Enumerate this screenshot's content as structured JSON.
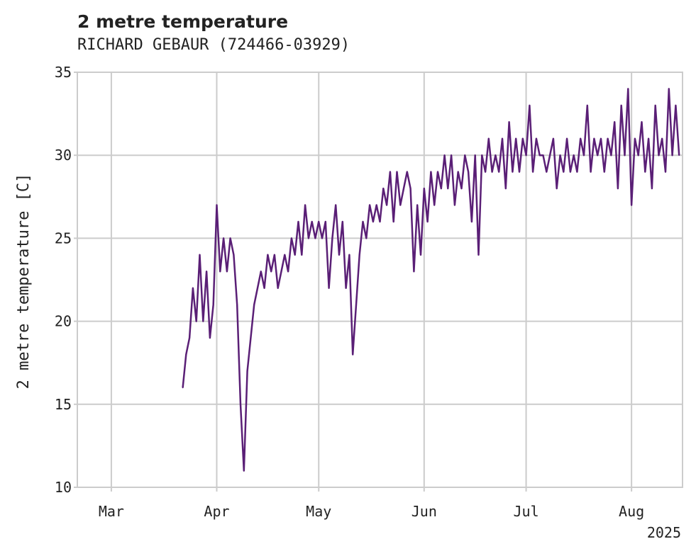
{
  "chart_data": {
    "type": "line",
    "title": "2 metre temperature",
    "subtitle": "RICHARD GEBAUR (724466-03929)",
    "ylabel": "2 metre temperature [C]",
    "xlabel": "",
    "x_tick_labels": [
      "Mar",
      "Apr",
      "May",
      "Jun",
      "Jul",
      "Aug"
    ],
    "x_tick_dates": [
      "2025-03-01",
      "2025-04-01",
      "2025-05-01",
      "2025-06-01",
      "2025-07-01",
      "2025-08-01"
    ],
    "x_offset_label": "2025",
    "y_ticks": [
      10,
      15,
      20,
      25,
      30,
      35
    ],
    "xlim": [
      "2025-02-19",
      "2025-08-16"
    ],
    "ylim": [
      10,
      35
    ],
    "grid": true,
    "line_color": "#5a1f76",
    "series": [
      {
        "points": [
          [
            "2025-03-22",
            16
          ],
          [
            "2025-03-23",
            18
          ],
          [
            "2025-03-24",
            19
          ],
          [
            "2025-03-25",
            22
          ],
          [
            "2025-03-26",
            20
          ],
          [
            "2025-03-27",
            24
          ],
          [
            "2025-03-28",
            20
          ],
          [
            "2025-03-29",
            23
          ],
          [
            "2025-03-30",
            19
          ],
          [
            "2025-03-31",
            21
          ],
          [
            "2025-04-01",
            27
          ],
          [
            "2025-04-02",
            23
          ],
          [
            "2025-04-03",
            25
          ],
          [
            "2025-04-04",
            23
          ],
          [
            "2025-04-05",
            25
          ],
          [
            "2025-04-06",
            24
          ],
          [
            "2025-04-07",
            21
          ],
          [
            "2025-04-08",
            15
          ],
          [
            "2025-04-09",
            11
          ],
          [
            "2025-04-10",
            17
          ],
          [
            "2025-04-11",
            19
          ],
          [
            "2025-04-12",
            21
          ],
          [
            "2025-04-13",
            22
          ],
          [
            "2025-04-14",
            23
          ],
          [
            "2025-04-15",
            22
          ],
          [
            "2025-04-16",
            24
          ],
          [
            "2025-04-17",
            23
          ],
          [
            "2025-04-18",
            24
          ],
          [
            "2025-04-19",
            22
          ],
          [
            "2025-04-20",
            23
          ],
          [
            "2025-04-21",
            24
          ],
          [
            "2025-04-22",
            23
          ],
          [
            "2025-04-23",
            25
          ],
          [
            "2025-04-24",
            24
          ],
          [
            "2025-04-25",
            26
          ],
          [
            "2025-04-26",
            24
          ],
          [
            "2025-04-27",
            27
          ],
          [
            "2025-04-28",
            25
          ],
          [
            "2025-04-29",
            26
          ],
          [
            "2025-04-30",
            25
          ],
          [
            "2025-05-01",
            26
          ],
          [
            "2025-05-02",
            25
          ],
          [
            "2025-05-03",
            26
          ],
          [
            "2025-05-04",
            22
          ],
          [
            "2025-05-05",
            25
          ],
          [
            "2025-05-06",
            27
          ],
          [
            "2025-05-07",
            24
          ],
          [
            "2025-05-08",
            26
          ],
          [
            "2025-05-09",
            22
          ],
          [
            "2025-05-10",
            24
          ],
          [
            "2025-05-11",
            18
          ],
          [
            "2025-05-12",
            21
          ],
          [
            "2025-05-13",
            24
          ],
          [
            "2025-05-14",
            26
          ],
          [
            "2025-05-15",
            25
          ],
          [
            "2025-05-16",
            27
          ],
          [
            "2025-05-17",
            26
          ],
          [
            "2025-05-18",
            27
          ],
          [
            "2025-05-19",
            26
          ],
          [
            "2025-05-20",
            28
          ],
          [
            "2025-05-21",
            27
          ],
          [
            "2025-05-22",
            29
          ],
          [
            "2025-05-23",
            26
          ],
          [
            "2025-05-24",
            29
          ],
          [
            "2025-05-25",
            27
          ],
          [
            "2025-05-26",
            28
          ],
          [
            "2025-05-27",
            29
          ],
          [
            "2025-05-28",
            28
          ],
          [
            "2025-05-29",
            23
          ],
          [
            "2025-05-30",
            27
          ],
          [
            "2025-05-31",
            24
          ],
          [
            "2025-06-01",
            28
          ],
          [
            "2025-06-02",
            26
          ],
          [
            "2025-06-03",
            29
          ],
          [
            "2025-06-04",
            27
          ],
          [
            "2025-06-05",
            29
          ],
          [
            "2025-06-06",
            28
          ],
          [
            "2025-06-07",
            30
          ],
          [
            "2025-06-08",
            28
          ],
          [
            "2025-06-09",
            30
          ],
          [
            "2025-06-10",
            27
          ],
          [
            "2025-06-11",
            29
          ],
          [
            "2025-06-12",
            28
          ],
          [
            "2025-06-13",
            30
          ],
          [
            "2025-06-14",
            29
          ],
          [
            "2025-06-15",
            26
          ],
          [
            "2025-06-16",
            30
          ],
          [
            "2025-06-17",
            24
          ],
          [
            "2025-06-18",
            30
          ],
          [
            "2025-06-19",
            29
          ],
          [
            "2025-06-20",
            31
          ],
          [
            "2025-06-21",
            29
          ],
          [
            "2025-06-22",
            30
          ],
          [
            "2025-06-23",
            29
          ],
          [
            "2025-06-24",
            31
          ],
          [
            "2025-06-25",
            28
          ],
          [
            "2025-06-26",
            32
          ],
          [
            "2025-06-27",
            29
          ],
          [
            "2025-06-28",
            31
          ],
          [
            "2025-06-29",
            29
          ],
          [
            "2025-06-30",
            31
          ],
          [
            "2025-07-01",
            30
          ],
          [
            "2025-07-02",
            33
          ],
          [
            "2025-07-03",
            29
          ],
          [
            "2025-07-04",
            31
          ],
          [
            "2025-07-05",
            30
          ],
          [
            "2025-07-06",
            30
          ],
          [
            "2025-07-07",
            29
          ],
          [
            "2025-07-08",
            30
          ],
          [
            "2025-07-09",
            31
          ],
          [
            "2025-07-10",
            28
          ],
          [
            "2025-07-11",
            30
          ],
          [
            "2025-07-12",
            29
          ],
          [
            "2025-07-13",
            31
          ],
          [
            "2025-07-14",
            29
          ],
          [
            "2025-07-15",
            30
          ],
          [
            "2025-07-16",
            29
          ],
          [
            "2025-07-17",
            31
          ],
          [
            "2025-07-18",
            30
          ],
          [
            "2025-07-19",
            33
          ],
          [
            "2025-07-20",
            29
          ],
          [
            "2025-07-21",
            31
          ],
          [
            "2025-07-22",
            30
          ],
          [
            "2025-07-23",
            31
          ],
          [
            "2025-07-24",
            29
          ],
          [
            "2025-07-25",
            31
          ],
          [
            "2025-07-26",
            30
          ],
          [
            "2025-07-27",
            32
          ],
          [
            "2025-07-28",
            28
          ],
          [
            "2025-07-29",
            33
          ],
          [
            "2025-07-30",
            30
          ],
          [
            "2025-07-31",
            34
          ],
          [
            "2025-08-01",
            27
          ],
          [
            "2025-08-02",
            31
          ],
          [
            "2025-08-03",
            30
          ],
          [
            "2025-08-04",
            32
          ],
          [
            "2025-08-05",
            29
          ],
          [
            "2025-08-06",
            31
          ],
          [
            "2025-08-07",
            28
          ],
          [
            "2025-08-08",
            33
          ],
          [
            "2025-08-09",
            30
          ],
          [
            "2025-08-10",
            31
          ],
          [
            "2025-08-11",
            29
          ],
          [
            "2025-08-12",
            34
          ],
          [
            "2025-08-13",
            30
          ],
          [
            "2025-08-14",
            33
          ],
          [
            "2025-08-15",
            30
          ]
        ]
      }
    ]
  }
}
